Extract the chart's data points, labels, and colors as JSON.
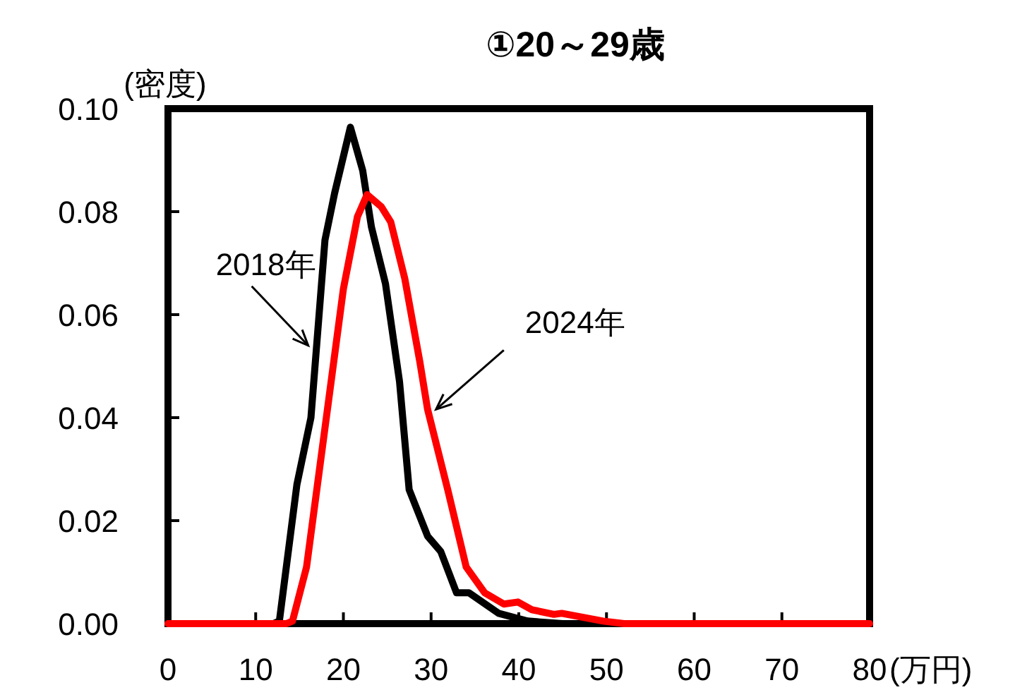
{
  "chart_data": {
    "type": "line",
    "title": "①20～29歳",
    "ylabel": "(密度)",
    "xlabel": "(万円)",
    "xlim": [
      0,
      80
    ],
    "xticks": [
      0,
      10,
      20,
      30,
      40,
      50,
      60,
      70,
      80
    ],
    "ylim": [
      0,
      0.1
    ],
    "yticks": [
      {
        "value": 0,
        "label": "0.00"
      },
      {
        "value": 0.02,
        "label": "0.02"
      },
      {
        "value": 0.04,
        "label": "0.04"
      },
      {
        "value": 0.06,
        "label": "0.06"
      },
      {
        "value": 0.08,
        "label": "0.08"
      },
      {
        "value": 0.1,
        "label": "0.10"
      }
    ],
    "grid": false,
    "line_style": "solid",
    "series": [
      {
        "color": "#000000",
        "x": [
          0,
          12,
          12.7,
          14.7,
          16.3,
          17.9,
          19,
          20.8,
          22.2,
          23.2,
          24.8,
          26.4,
          27.5,
          29.6,
          31.1,
          32.9,
          34.3,
          37.7,
          41,
          45,
          50,
          80
        ],
        "values": [
          0,
          0,
          0.0005,
          0.027,
          0.04,
          0.0745,
          0.0836,
          0.0964,
          0.088,
          0.077,
          0.066,
          0.047,
          0.026,
          0.017,
          0.014,
          0.006,
          0.006,
          0.002,
          0.0005,
          0,
          0,
          0
        ]
      },
      {
        "color": "#ff0000",
        "x": [
          0,
          13.5,
          14.2,
          15.8,
          17.9,
          20,
          21.6,
          22.7,
          24.3,
          25.4,
          27,
          28.7,
          29.6,
          31.9,
          34,
          36.1,
          38.3,
          39.9,
          41.5,
          44,
          44.9,
          49.6,
          52,
          80
        ],
        "values": [
          0,
          0,
          0.0005,
          0.011,
          0.038,
          0.065,
          0.079,
          0.0833,
          0.081,
          0.078,
          0.067,
          0.051,
          0.0416,
          0.026,
          0.011,
          0.006,
          0.0038,
          0.0042,
          0.0027,
          0.0018,
          0.002,
          0.0005,
          0,
          0
        ]
      }
    ],
    "annotations": [
      {
        "text": "2018年",
        "x": 16.95,
        "y": 0.054
      },
      {
        "text": "2024年",
        "x": 29.6,
        "y": 0.0416
      }
    ]
  }
}
